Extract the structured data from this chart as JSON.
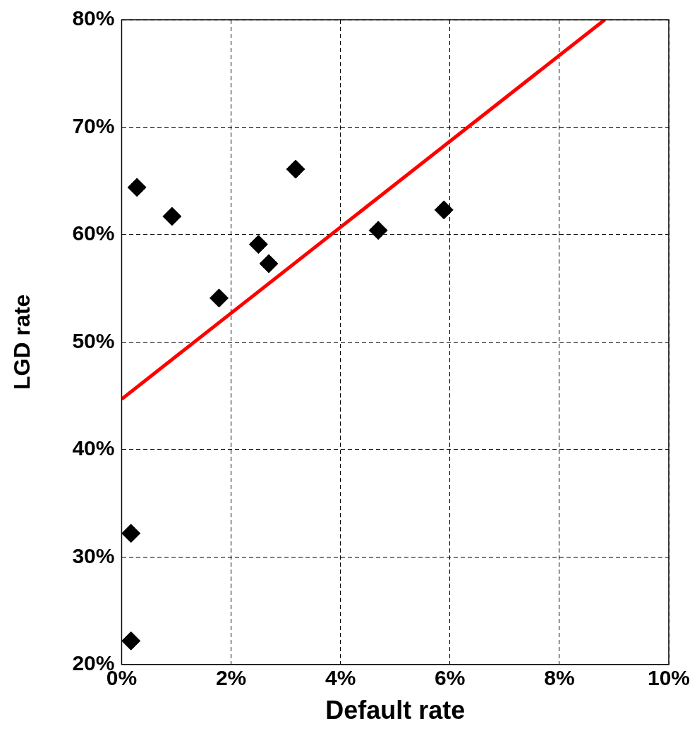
{
  "chart_data": {
    "type": "scatter",
    "xlabel": "Default rate",
    "ylabel": "LGD rate",
    "series": [
      {
        "color": "#000000",
        "marker": "diamond",
        "x": [
          0.17,
          0.17,
          0.28,
          0.92,
          1.78,
          2.5,
          2.69,
          3.18,
          4.69,
          5.89
        ],
        "values": [
          32.2,
          22.2,
          64.4,
          61.7,
          54.1,
          59.1,
          57.3,
          66.1,
          60.4,
          62.3
        ]
      },
      {
        "type": "line",
        "color": "#ff0000",
        "marker": "none",
        "x": [
          0,
          8.83
        ],
        "values": [
          44.7,
          80
        ]
      }
    ],
    "xlim": [
      0,
      10
    ],
    "xticks": [
      {
        "value": 0,
        "label": "0%"
      },
      {
        "value": 2,
        "label": "2%"
      },
      {
        "value": 4,
        "label": "4%"
      },
      {
        "value": 6,
        "label": "6%"
      },
      {
        "value": 8,
        "label": "8%"
      },
      {
        "value": 10,
        "label": "10%"
      }
    ],
    "ylim": [
      20,
      80
    ],
    "yticks": [
      {
        "value": 20,
        "label": "20%"
      },
      {
        "value": 30,
        "label": "30%"
      },
      {
        "value": 40,
        "label": "40%"
      },
      {
        "value": 50,
        "label": "50%"
      },
      {
        "value": 60,
        "label": "60%"
      },
      {
        "value": 70,
        "label": "70%"
      },
      {
        "value": 80,
        "label": "80%"
      }
    ],
    "grid": true,
    "legend": false
  }
}
